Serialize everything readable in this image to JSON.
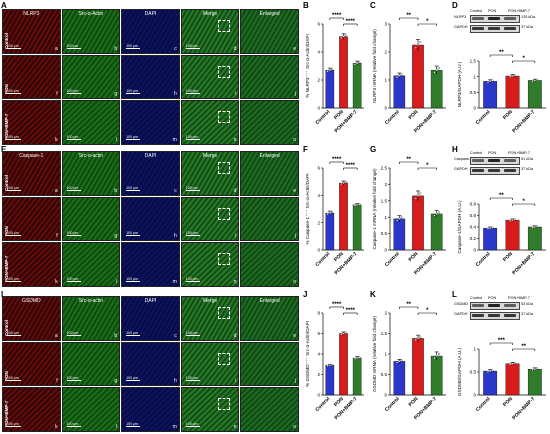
{
  "colors": {
    "control": "#2a37c9",
    "pon": "#d81b1b",
    "ponbmp7": "#2f7d2b"
  },
  "sections": [
    {
      "id": "A",
      "letters": {
        "micro": "A",
        "bar1": "B",
        "bar2": "C",
        "wb": "D"
      },
      "columns": [
        "NLRP3",
        "Src-α-Actin",
        "DAPI",
        "Merge",
        "Enlarged"
      ],
      "rows": [
        "Control",
        "PON",
        "PON+BMP-7"
      ],
      "tile_letters": [
        [
          "a",
          "b",
          "c",
          "d",
          "e"
        ],
        [
          "f",
          "g",
          "h",
          "i",
          "j"
        ],
        [
          "k",
          "l",
          "m",
          "n",
          "o"
        ]
      ],
      "scale_text": "100 μm",
      "tile_colors": [
        "#7a0b0b",
        "#1a7d1a",
        "#0d1570",
        "#2a8a2a",
        "#1d7a22"
      ]
    },
    {
      "id": "E",
      "letters": {
        "micro": "E",
        "bar1": "F",
        "bar2": "G",
        "wb": "H"
      },
      "columns": [
        "Caspase-1",
        "Src-α-actin",
        "DAPI",
        "Merge",
        "Enlarged"
      ],
      "rows": [
        "Control",
        "PON",
        "PON+BMP-7"
      ],
      "tile_letters": [
        [
          "a",
          "b",
          "c",
          "d",
          "e"
        ],
        [
          "f",
          "g",
          "h",
          "i",
          "j"
        ],
        [
          "k",
          "l",
          "m",
          "n",
          "o"
        ]
      ],
      "scale_text": "100 μm",
      "tile_colors": [
        "#7a0b0b",
        "#1a7d1a",
        "#0d1570",
        "#2a8a2a",
        "#1d7a22"
      ]
    },
    {
      "id": "I",
      "letters": {
        "micro": "I",
        "bar1": "J",
        "bar2": "K",
        "wb": "L"
      },
      "columns": [
        "GSDMD",
        "Src-α-actin",
        "DAPI",
        "Merge",
        "Enlarged"
      ],
      "rows": [
        "Control",
        "PON",
        "PON+BMP-7"
      ],
      "tile_letters": [
        [
          "a",
          "b",
          "c",
          "d",
          "e"
        ],
        [
          "f",
          "g",
          "h",
          "i",
          "j"
        ],
        [
          "k",
          "l",
          "m",
          "n",
          "o"
        ]
      ],
      "scale_text": "100 μm",
      "tile_colors": [
        "#7a0b0b",
        "#1a7d1a",
        "#0d1570",
        "#2a8a2a",
        "#1d7a22"
      ]
    }
  ],
  "western": [
    {
      "bands": [
        {
          "name": "NLRP3",
          "size": "125 kDa"
        },
        {
          "name": "GAPDH",
          "size": "37 kDa"
        }
      ],
      "lanes": [
        "Control",
        "PON",
        "PON+BMP-7"
      ]
    },
    {
      "bands": [
        {
          "name": "Caspase-1",
          "size": "51 kDa"
        },
        {
          "name": "GAPDH",
          "size": "37 kDa"
        }
      ],
      "lanes": [
        "Control",
        "PON",
        "PON+BMP-7"
      ]
    },
    {
      "bands": [
        {
          "name": "GSDMD",
          "size": "53 kDa"
        },
        {
          "name": "GAPDH",
          "size": "37 kDa"
        }
      ],
      "lanes": [
        "Control",
        "PON",
        "PON+BMP-7"
      ]
    }
  ],
  "chart_data": [
    {
      "panel": "B",
      "type": "bar",
      "categories": [
        "Control",
        "PON",
        "PON+BMP-7"
      ],
      "values": [
        2.7,
        5.1,
        3.2
      ],
      "errors": [
        0.15,
        0.2,
        0.15
      ],
      "ylim": [
        0,
        6
      ],
      "yticks": [
        0,
        2,
        4,
        6
      ],
      "ylabel": "% NLRP3⁺⁺⁺ Src-α-Actin/DAPI",
      "sig": [
        {
          "pair": [
            0,
            1
          ],
          "label": "****"
        },
        {
          "pair": [
            1,
            2
          ],
          "label": "****"
        }
      ]
    },
    {
      "panel": "C",
      "type": "bar",
      "categories": [
        "Control",
        "PON",
        "PON+BMP-7"
      ],
      "values": [
        1.15,
        2.25,
        1.35
      ],
      "errors": [
        0.1,
        0.2,
        0.15
      ],
      "ylim": [
        0,
        3
      ],
      "yticks": [
        0,
        1,
        2,
        3
      ],
      "ylabel": "NLRP3 mRNA (relative fold change)",
      "sig": [
        {
          "pair": [
            0,
            1
          ],
          "label": "**"
        },
        {
          "pair": [
            1,
            2
          ],
          "label": "*"
        }
      ]
    },
    {
      "panel": "D",
      "type": "bar",
      "categories": [
        "Control",
        "PON",
        "PON+BMP-7"
      ],
      "values": [
        0.85,
        1.02,
        0.88
      ],
      "errors": [
        0.05,
        0.05,
        0.04
      ],
      "ylim": [
        0,
        1.5
      ],
      "yticks": [
        0.0,
        0.5,
        1.0,
        1.5
      ],
      "ylabel": "NLRP3/GAPDH (A.U.)",
      "sig": [
        {
          "pair": [
            0,
            1
          ],
          "label": "**"
        },
        {
          "pair": [
            1,
            2
          ],
          "label": "*"
        }
      ]
    },
    {
      "panel": "F",
      "type": "bar",
      "categories": [
        "Control",
        "PON",
        "PON+BMP-7"
      ],
      "values": [
        2.7,
        4.9,
        3.3
      ],
      "errors": [
        0.15,
        0.15,
        0.1
      ],
      "ylim": [
        0,
        6
      ],
      "yticks": [
        0,
        2,
        4,
        6
      ],
      "ylabel": "% Caspase-1⁺⁺⁺ Src-α-Actin/DAPI",
      "sig": [
        {
          "pair": [
            0,
            1
          ],
          "label": "****"
        },
        {
          "pair": [
            1,
            2
          ],
          "label": "****"
        }
      ]
    },
    {
      "panel": "G",
      "type": "bar",
      "categories": [
        "Control",
        "PON",
        "PON+BMP-7"
      ],
      "values": [
        0.95,
        1.65,
        1.1
      ],
      "errors": [
        0.1,
        0.15,
        0.1
      ],
      "ylim": [
        0,
        2.5
      ],
      "yticks": [
        0.0,
        0.5,
        1.0,
        1.5,
        2.0,
        2.5
      ],
      "ylabel": "Caspase-1 mRNA (relative fold change)",
      "sig": [
        {
          "pair": [
            0,
            1
          ],
          "label": "**"
        },
        {
          "pair": [
            1,
            2
          ],
          "label": "*"
        }
      ]
    },
    {
      "panel": "H",
      "type": "bar",
      "categories": [
        "Control",
        "PON",
        "PON+BMP-7"
      ],
      "values": [
        0.38,
        0.52,
        0.4
      ],
      "errors": [
        0.02,
        0.02,
        0.02
      ],
      "ylim": [
        0,
        0.8
      ],
      "yticks": [
        0.0,
        0.2,
        0.4,
        0.6,
        0.8
      ],
      "ylabel": "Caspase-1/GAPDH (A.U.)",
      "sig": [
        {
          "pair": [
            0,
            1
          ],
          "label": "**"
        },
        {
          "pair": [
            1,
            2
          ],
          "label": "*"
        }
      ]
    },
    {
      "panel": "J",
      "type": "bar",
      "categories": [
        "Control",
        "PON",
        "PON+BMP-7"
      ],
      "values": [
        2.9,
        6.0,
        3.6
      ],
      "errors": [
        0.1,
        0.15,
        0.15
      ],
      "ylim": [
        0,
        8
      ],
      "yticks": [
        0,
        2,
        4,
        6,
        8
      ],
      "ylabel": "% GSDMD⁺⁺⁺ Src-α-Actin/DAPI",
      "sig": [
        {
          "pair": [
            0,
            1
          ],
          "label": "****"
        },
        {
          "pair": [
            1,
            2
          ],
          "label": "****"
        }
      ]
    },
    {
      "panel": "K",
      "type": "bar",
      "categories": [
        "Control",
        "PON",
        "PON+BMP-7"
      ],
      "values": [
        0.82,
        1.38,
        0.95
      ],
      "errors": [
        0.05,
        0.08,
        0.1
      ],
      "ylim": [
        0,
        2.0
      ],
      "yticks": [
        0.0,
        0.5,
        1.0,
        1.5,
        2.0
      ],
      "ylabel": "GSDMD mRNA (relative fold change)",
      "sig": [
        {
          "pair": [
            0,
            1
          ],
          "label": "**"
        },
        {
          "pair": [
            1,
            2
          ],
          "label": "*"
        }
      ]
    },
    {
      "panel": "L",
      "type": "bar",
      "categories": [
        "Control",
        "PON",
        "PON+BMP-7"
      ],
      "values": [
        0.52,
        0.68,
        0.56
      ],
      "errors": [
        0.03,
        0.03,
        0.03
      ],
      "ylim": [
        0,
        1.0
      ],
      "yticks": [
        0.0,
        0.5,
        1.0
      ],
      "ylabel": "GSDMD/GAPDH (A.U.)",
      "sig": [
        {
          "pair": [
            0,
            1
          ],
          "label": "***"
        },
        {
          "pair": [
            1,
            2
          ],
          "label": "**"
        }
      ]
    }
  ]
}
